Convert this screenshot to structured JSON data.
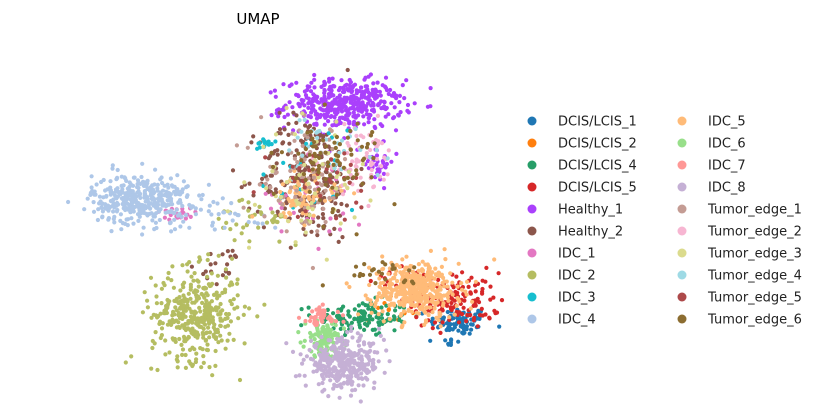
{
  "chart_data": {
    "type": "scatter",
    "title": "UMAP",
    "xlabel": "",
    "ylabel": "",
    "grid": false,
    "axes_visible": false,
    "legend_placement": "right",
    "legend_columns": 2,
    "series": [
      {
        "name": "DCIS/LCIS_1",
        "color": "#1f77b4",
        "clusters": [
          {
            "cx": 0.83,
            "cy": -0.62,
            "sx": 0.06,
            "sy": 0.04,
            "n": 90
          },
          {
            "cx": 0.79,
            "cy": -0.74,
            "sx": 0.02,
            "sy": 0.02,
            "n": 10
          }
        ]
      },
      {
        "name": "DCIS/LCIS_2",
        "color": "#ff7f0e",
        "clusters": [
          {
            "cx": 0.55,
            "cy": -0.55,
            "sx": 0.08,
            "sy": 0.05,
            "n": 12
          }
        ]
      },
      {
        "name": "DCIS/LCIS_4",
        "color": "#279e68",
        "clusters": [
          {
            "cx": 0.42,
            "cy": -0.6,
            "sx": 0.1,
            "sy": 0.05,
            "n": 140
          }
        ]
      },
      {
        "name": "DCIS/LCIS_5",
        "color": "#d62728",
        "clusters": [
          {
            "cx": 0.82,
            "cy": -0.5,
            "sx": 0.09,
            "sy": 0.08,
            "n": 130
          },
          {
            "cx": 0.6,
            "cy": -0.38,
            "sx": 0.08,
            "sy": 0.03,
            "n": 30
          }
        ]
      },
      {
        "name": "Healthy_1",
        "color": "#aa40fc",
        "clusters": [
          {
            "cx": 0.35,
            "cy": 0.62,
            "sx": 0.12,
            "sy": 0.07,
            "n": 420
          },
          {
            "cx": 0.48,
            "cy": 0.3,
            "sx": 0.04,
            "sy": 0.06,
            "n": 40
          }
        ]
      },
      {
        "name": "Healthy_2",
        "color": "#8c564b",
        "clusters": [
          {
            "cx": 0.2,
            "cy": 0.2,
            "sx": 0.1,
            "sy": 0.18,
            "n": 230
          },
          {
            "cx": -0.15,
            "cy": -0.3,
            "sx": 0.05,
            "sy": 0.05,
            "n": 20
          }
        ]
      },
      {
        "name": "IDC_1",
        "color": "#e377c2",
        "clusters": [
          {
            "cx": -0.35,
            "cy": 0.0,
            "sx": 0.05,
            "sy": 0.02,
            "n": 25
          },
          {
            "cx": 0.25,
            "cy": 0.1,
            "sx": 0.1,
            "sy": 0.15,
            "n": 25
          }
        ]
      },
      {
        "name": "IDC_2",
        "color": "#b5bd61",
        "clusters": [
          {
            "cx": -0.27,
            "cy": -0.58,
            "sx": 0.09,
            "sy": 0.13,
            "n": 380
          },
          {
            "cx": 0.0,
            "cy": -0.05,
            "sx": 0.1,
            "sy": 0.08,
            "n": 40
          }
        ]
      },
      {
        "name": "IDC_3",
        "color": "#17becf",
        "clusters": [
          {
            "cx": 0.02,
            "cy": 0.4,
            "sx": 0.02,
            "sy": 0.015,
            "n": 15
          },
          {
            "cx": 0.2,
            "cy": 0.2,
            "sx": 0.1,
            "sy": 0.15,
            "n": 25
          }
        ]
      },
      {
        "name": "IDC_4",
        "color": "#aec7e8",
        "clusters": [
          {
            "cx": -0.5,
            "cy": 0.08,
            "sx": 0.1,
            "sy": 0.07,
            "n": 380
          },
          {
            "cx": -0.15,
            "cy": 0.0,
            "sx": 0.12,
            "sy": 0.05,
            "n": 35
          }
        ]
      },
      {
        "name": "IDC_5",
        "color": "#ffbb78",
        "clusters": [
          {
            "cx": 0.65,
            "cy": -0.44,
            "sx": 0.09,
            "sy": 0.08,
            "n": 420
          },
          {
            "cx": 0.18,
            "cy": 0.1,
            "sx": 0.07,
            "sy": 0.07,
            "n": 80
          }
        ]
      },
      {
        "name": "IDC_6",
        "color": "#98df8a",
        "clusters": [
          {
            "cx": 0.27,
            "cy": -0.72,
            "sx": 0.04,
            "sy": 0.05,
            "n": 120
          }
        ]
      },
      {
        "name": "IDC_7",
        "color": "#ff9896",
        "clusters": [
          {
            "cx": 0.25,
            "cy": -0.6,
            "sx": 0.04,
            "sy": 0.03,
            "n": 45
          }
        ]
      },
      {
        "name": "IDC_8",
        "color": "#c5b0d5",
        "clusters": [
          {
            "cx": 0.35,
            "cy": -0.86,
            "sx": 0.08,
            "sy": 0.07,
            "n": 340
          }
        ]
      },
      {
        "name": "Tumor_edge_1",
        "color": "#c49c94",
        "clusters": [
          {
            "cx": 0.2,
            "cy": 0.2,
            "sx": 0.1,
            "sy": 0.15,
            "n": 80
          }
        ]
      },
      {
        "name": "Tumor_edge_2",
        "color": "#f7b6d2",
        "clusters": [
          {
            "cx": 0.42,
            "cy": 0.3,
            "sx": 0.08,
            "sy": 0.1,
            "n": 60
          }
        ]
      },
      {
        "name": "Tumor_edge_3",
        "color": "#dbdb8d",
        "clusters": [
          {
            "cx": 0.2,
            "cy": 0.15,
            "sx": 0.1,
            "sy": 0.15,
            "n": 60
          }
        ]
      },
      {
        "name": "Tumor_edge_4",
        "color": "#9edae5",
        "clusters": [
          {
            "cx": 0.3,
            "cy": 0.35,
            "sx": 0.1,
            "sy": 0.1,
            "n": 30
          }
        ]
      },
      {
        "name": "Tumor_edge_5",
        "color": "#ad494a",
        "clusters": [
          {
            "cx": 0.25,
            "cy": 0.2,
            "sx": 0.1,
            "sy": 0.1,
            "n": 30
          }
        ]
      },
      {
        "name": "Tumor_edge_6",
        "color": "#8c6d31",
        "clusters": [
          {
            "cx": 0.3,
            "cy": 0.3,
            "sx": 0.1,
            "sy": 0.12,
            "n": 80
          },
          {
            "cx": 0.5,
            "cy": -0.34,
            "sx": 0.1,
            "sy": 0.03,
            "n": 25
          }
        ]
      }
    ]
  }
}
